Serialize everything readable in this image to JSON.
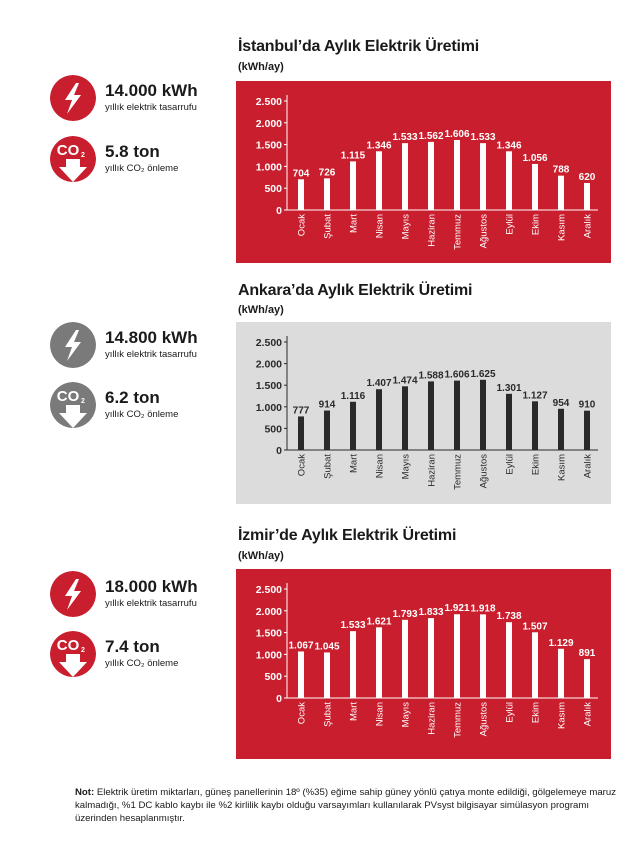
{
  "colors": {
    "red": "#c81e2d",
    "grey_icon": "#7a7a7a",
    "grey_bg": "#dcdcdc",
    "dark_bar": "#2a2a2a",
    "white": "#ffffff"
  },
  "sections": [
    {
      "city": "İstanbul",
      "title": "İstanbul’da Aylık Elektrik Üretimi",
      "unit": "(kWh/ay)",
      "theme": "red",
      "stats": {
        "energy_value": "14.000 kWh",
        "energy_label": "yıllık elektrik tasarrufu",
        "co2_value": "5.8 ton",
        "co2_label": "yıllık CO₂ önleme"
      }
    },
    {
      "city": "Ankara",
      "title": "Ankara’da Aylık Elektrik Üretimi",
      "unit": "(kWh/ay)",
      "theme": "grey",
      "stats": {
        "energy_value": "14.800 kWh",
        "energy_label": "yıllık elektrik tasarrufu",
        "co2_value": "6.2 ton",
        "co2_label": "yıllık CO₂ önleme"
      }
    },
    {
      "city": "İzmir",
      "title": "İzmir’de Aylık Elektrik Üretimi",
      "unit": "(kWh/ay)",
      "theme": "red",
      "stats": {
        "energy_value": "18.000 kWh",
        "energy_label": "yıllık elektrik tasarrufu",
        "co2_value": "7.4 ton",
        "co2_label": "yıllık CO₂ önleme"
      }
    }
  ],
  "icons": {
    "energy": "lightning-bolt-icon",
    "co2": "co2-down-arrow-icon",
    "co2_text": "CO",
    "co2_sub": "2"
  },
  "note": {
    "label": "Not:",
    "text": " Elektrik üretim miktarları, güneş panellerinin 18º (%35) eğime sahip güney yönlü çatıya monte edildiği, gölgelemeye maruz kalmadığı, %1 DC kablo kaybı ile %2 kirlilik kaybı olduğu varsayımları kullanılarak PVsyst bilgisayar simülasyon programı üzerinden hesaplanmıştır."
  },
  "chart_data": [
    {
      "type": "bar",
      "title": "İstanbul’da Aylık Elektrik Üretimi",
      "subtitle": "(kWh/ay)",
      "xlabel": "",
      "ylabel": "kWh/ay",
      "categories": [
        "Ocak",
        "Şubat",
        "Mart",
        "Nisan",
        "Mayıs",
        "Haziran",
        "Temmuz",
        "Ağustos",
        "Eylül",
        "Ekim",
        "Kasım",
        "Aralık"
      ],
      "values": [
        704,
        726,
        1115,
        1346,
        1533,
        1562,
        1606,
        1533,
        1346,
        1056,
        788,
        620
      ],
      "value_labels": [
        "704",
        "726",
        "1.115",
        "1.346",
        "1.533",
        "1.562",
        "1.606",
        "1.533",
        "1.346",
        "1.056",
        "788",
        "620"
      ],
      "yticks": [
        "0",
        "500",
        "1.000",
        "1.500",
        "2.000",
        "2.500"
      ],
      "ylim": [
        0,
        2500
      ],
      "grid": false,
      "legend": null
    },
    {
      "type": "bar",
      "title": "Ankara’da Aylık Elektrik Üretimi",
      "subtitle": "(kWh/ay)",
      "xlabel": "",
      "ylabel": "kWh/ay",
      "categories": [
        "Ocak",
        "Şubat",
        "Mart",
        "Nisan",
        "Mayıs",
        "Haziran",
        "Temmuz",
        "Ağustos",
        "Eylül",
        "Ekim",
        "Kasım",
        "Aralık"
      ],
      "values": [
        777,
        914,
        1116,
        1407,
        1474,
        1588,
        1606,
        1625,
        1301,
        1127,
        954,
        910
      ],
      "value_labels": [
        "777",
        "914",
        "1.116",
        "1.407",
        "1.474",
        "1.588",
        "1.606",
        "1.625",
        "1.301",
        "1.127",
        "954",
        "910"
      ],
      "yticks": [
        "0",
        "500",
        "1.000",
        "1.500",
        "2.000",
        "2.500"
      ],
      "ylim": [
        0,
        2500
      ],
      "grid": false,
      "legend": null
    },
    {
      "type": "bar",
      "title": "İzmir’de Aylık Elektrik Üretimi",
      "subtitle": "(kWh/ay)",
      "xlabel": "",
      "ylabel": "kWh/ay",
      "categories": [
        "Ocak",
        "Şubat",
        "Mart",
        "Nisan",
        "Mayıs",
        "Haziran",
        "Temmuz",
        "Ağustos",
        "Eylül",
        "Ekim",
        "Kasım",
        "Aralık"
      ],
      "values": [
        1067,
        1045,
        1533,
        1621,
        1793,
        1833,
        1921,
        1918,
        1738,
        1507,
        1129,
        891
      ],
      "value_labels": [
        "1.067",
        "1.045",
        "1.533",
        "1.621",
        "1.793",
        "1.833",
        "1.921",
        "1.918",
        "1.738",
        "1.507",
        "1.129",
        "891"
      ],
      "yticks": [
        "0",
        "500",
        "1.000",
        "1.500",
        "2.000",
        "2.500"
      ],
      "ylim": [
        0,
        2500
      ],
      "grid": false,
      "legend": null
    }
  ]
}
